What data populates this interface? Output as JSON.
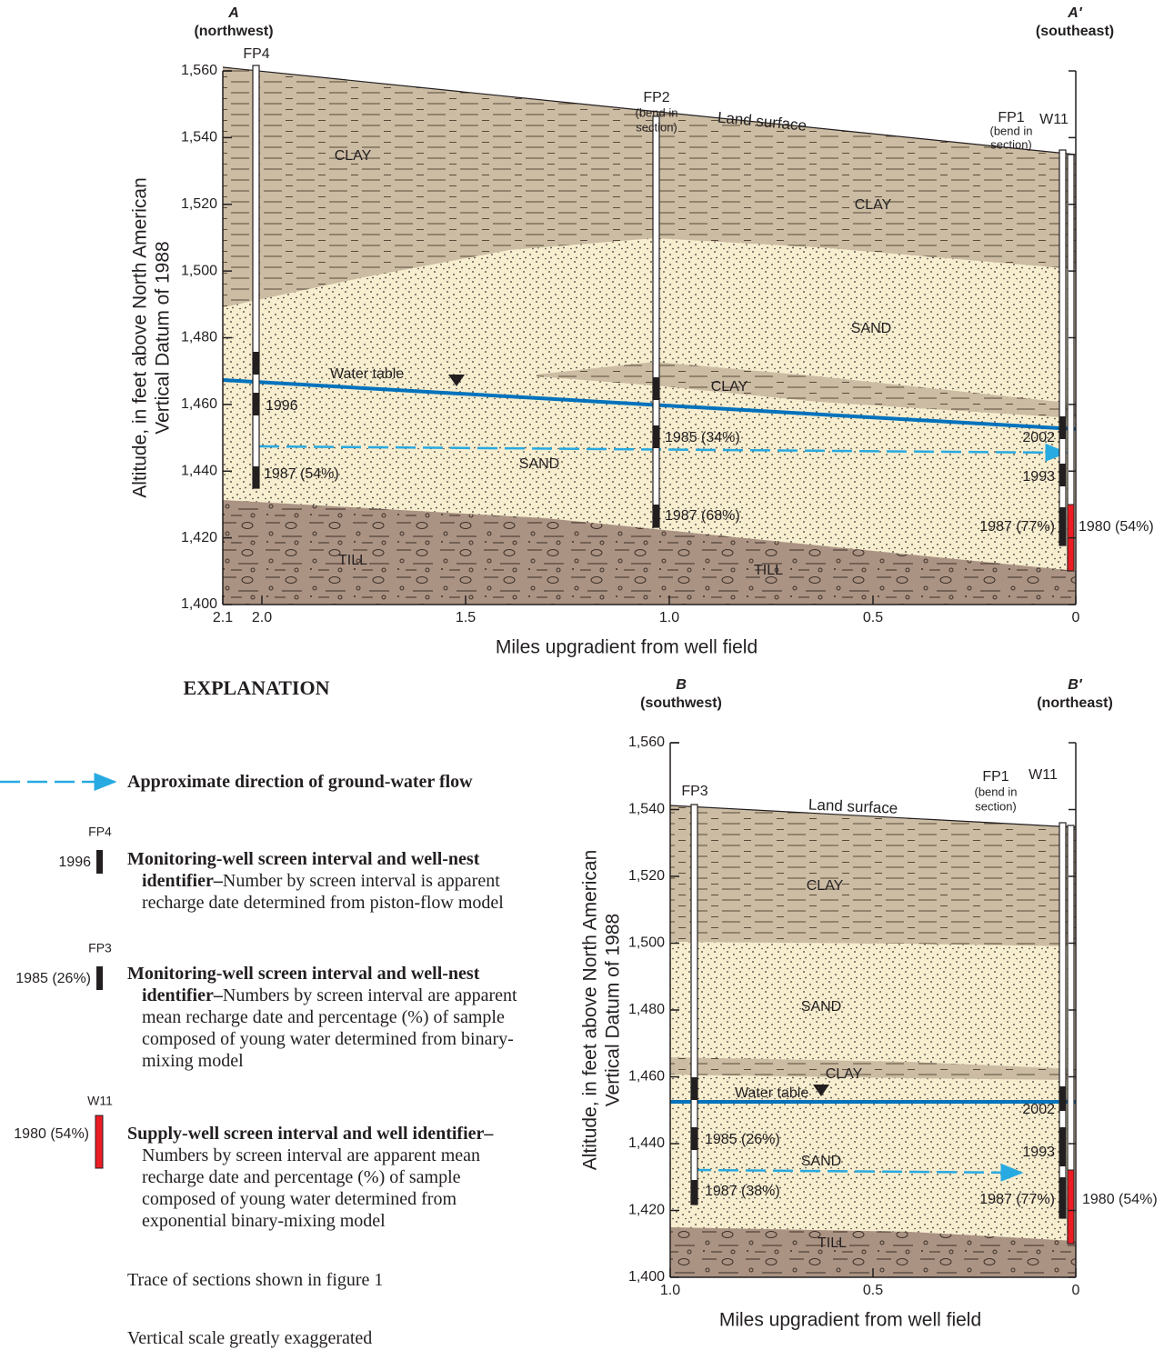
{
  "section_a": {
    "left_end": {
      "letter": "A",
      "direction": "(northwest)"
    },
    "right_end": {
      "letter": "A′",
      "direction": "(southeast)"
    },
    "y_axis_title": [
      "Altitude, in feet above North American",
      "Vertical Datum of 1988"
    ],
    "x_axis_title": "Miles upgradient from well field",
    "y_tick_labels": [
      "1,560",
      "1,540",
      "1,520",
      "1,500",
      "1,480",
      "1,460",
      "1,440",
      "1,420",
      "1,400"
    ],
    "x_tick_labels": [
      "2.1",
      "2.0",
      "1.5",
      "1.0",
      "0.5",
      "0"
    ],
    "labels": [
      "FP4",
      "FP2",
      "(bend in",
      "section)",
      "FP1",
      "(bend in",
      "section)",
      "W11",
      "Land surface",
      "CLAY",
      "CLAY",
      "SAND",
      "CLAY",
      "SAND",
      "TILL",
      "TILL",
      "Water table",
      "1996",
      "1987 (54%)",
      "1985 (34%)",
      "1987 (68%)",
      "2002",
      "1993",
      "1987 (77%)",
      "1980 (54%)"
    ]
  },
  "section_b": {
    "left_end": {
      "letter": "B",
      "direction": "(southwest)"
    },
    "right_end": {
      "letter": "B′",
      "direction": "(northeast)"
    },
    "y_axis_title": [
      "Altitude, in feet above North American",
      "Vertical Datum of 1988"
    ],
    "x_axis_title": "Miles upgradient from well field",
    "y_tick_labels": [
      "1,560",
      "1,540",
      "1,520",
      "1,500",
      "1,480",
      "1,460",
      "1,440",
      "1,420",
      "1,400"
    ],
    "x_tick_labels": [
      "1.0",
      "0.5",
      "0"
    ],
    "labels": [
      "FP3",
      "FP1",
      "(bend in",
      "section)",
      "W11",
      "Land surface",
      "CLAY",
      "SAND",
      "CLAY",
      "SAND",
      "TILL",
      "Water table",
      "1985 (26%)",
      "1987 (38%)",
      "2002",
      "1993",
      "1987 (77%)",
      "1980 (54%)"
    ]
  },
  "explanation": {
    "title": "EXPLANATION",
    "items": [
      {
        "term": "Approximate direction of ground-water flow"
      },
      {
        "well": "FP4",
        "sample": "1996",
        "term": "Monitoring-well screen interval and well-nest identifier–",
        "description": "Number by screen interval is apparent recharge date determined from piston-flow model"
      },
      {
        "well": "FP3",
        "sample": "1985 (26%)",
        "term": "Monitoring-well screen interval and well-nest identifier–",
        "description": "Numbers by screen interval are apparent mean recharge date and percentage (%) of sample composed of young water determined from binary-mixing model"
      },
      {
        "well": "W11",
        "sample": "1980 (54%)",
        "term": "Supply-well screen interval and well identifier–",
        "description": "Numbers by screen interval are apparent mean recharge date and percentage (%) of sample composed of young water determined from exponential binary-mixing model"
      }
    ],
    "notes": [
      "Trace of sections shown in figure 1",
      "Vertical scale greatly exaggerated"
    ]
  }
}
